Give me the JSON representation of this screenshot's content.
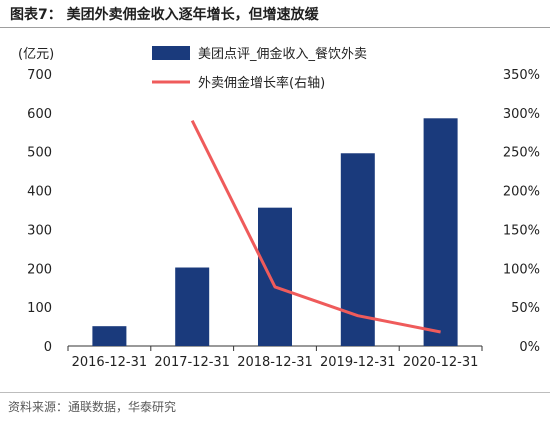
{
  "figure": {
    "title": "图表7：  美团外卖佣金收入逐年增长，但增速放缓",
    "source": "资料来源：通联数据，华泰研究"
  },
  "chart_data": {
    "type": "bar",
    "categories": [
      "2016-12-31",
      "2017-12-31",
      "2018-12-31",
      "2019-12-31",
      "2020-12-31"
    ],
    "series": [
      {
        "name": "美团点评_佣金收入_餐饮外卖",
        "type": "bar",
        "axis": "left",
        "values": [
          51,
          202,
          356,
          496,
          586
        ],
        "color": "#1a3a7c"
      },
      {
        "name": "外卖佣金增长率(右轴)",
        "type": "line",
        "axis": "right",
        "values": [
          null,
          290,
          76,
          39,
          18
        ],
        "color": "#ef5b5b"
      }
    ],
    "ylabel": "(亿元)",
    "ylim": [
      0,
      700
    ],
    "yticks": [
      0,
      100,
      200,
      300,
      400,
      500,
      600,
      700
    ],
    "y2lim": [
      0,
      350
    ],
    "y2ticks": [
      "0%",
      "50%",
      "100%",
      "150%",
      "200%",
      "250%",
      "300%",
      "350%"
    ],
    "grid": false,
    "legend_position": "top-center"
  }
}
